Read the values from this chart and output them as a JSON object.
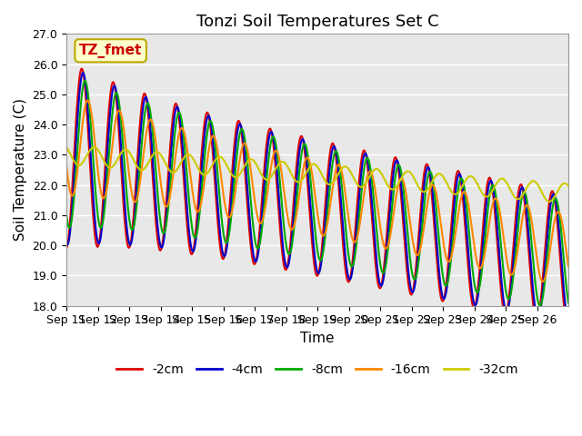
{
  "title": "Tonzi Soil Temperatures Set C",
  "xlabel": "Time",
  "ylabel": "Soil Temperature (C)",
  "ylim": [
    18.0,
    27.0
  ],
  "yticks": [
    18.0,
    19.0,
    20.0,
    21.0,
    22.0,
    23.0,
    24.0,
    25.0,
    26.0,
    27.0
  ],
  "xtick_labels": [
    "Sep 11",
    "Sep 12",
    "Sep 13",
    "Sep 14",
    "Sep 15",
    "Sep 16",
    "Sep 17",
    "Sep 18",
    "Sep 19",
    "Sep 20",
    "Sep 21",
    "Sep 22",
    "Sep 23",
    "Sep 24",
    "Sep 25",
    "Sep 26"
  ],
  "label_box_text": "TZ_fmet",
  "label_box_color": "#ffffcc",
  "label_box_edge": "#bbaa00",
  "label_text_color": "#cc0000",
  "series_colors": [
    "#dd0000",
    "#0000cc",
    "#00aa00",
    "#ff8800",
    "#cccc00"
  ],
  "series_labels": [
    "-2cm",
    "-4cm",
    "-8cm",
    "-16cm",
    "-32cm"
  ],
  "line_width": 1.5,
  "bg_color": "#e8e8e8",
  "fig_color": "#ffffff",
  "grid_color": "#ffffff",
  "title_fontsize": 13,
  "axis_label_fontsize": 11,
  "tick_label_fontsize": 9,
  "legend_fontsize": 10
}
